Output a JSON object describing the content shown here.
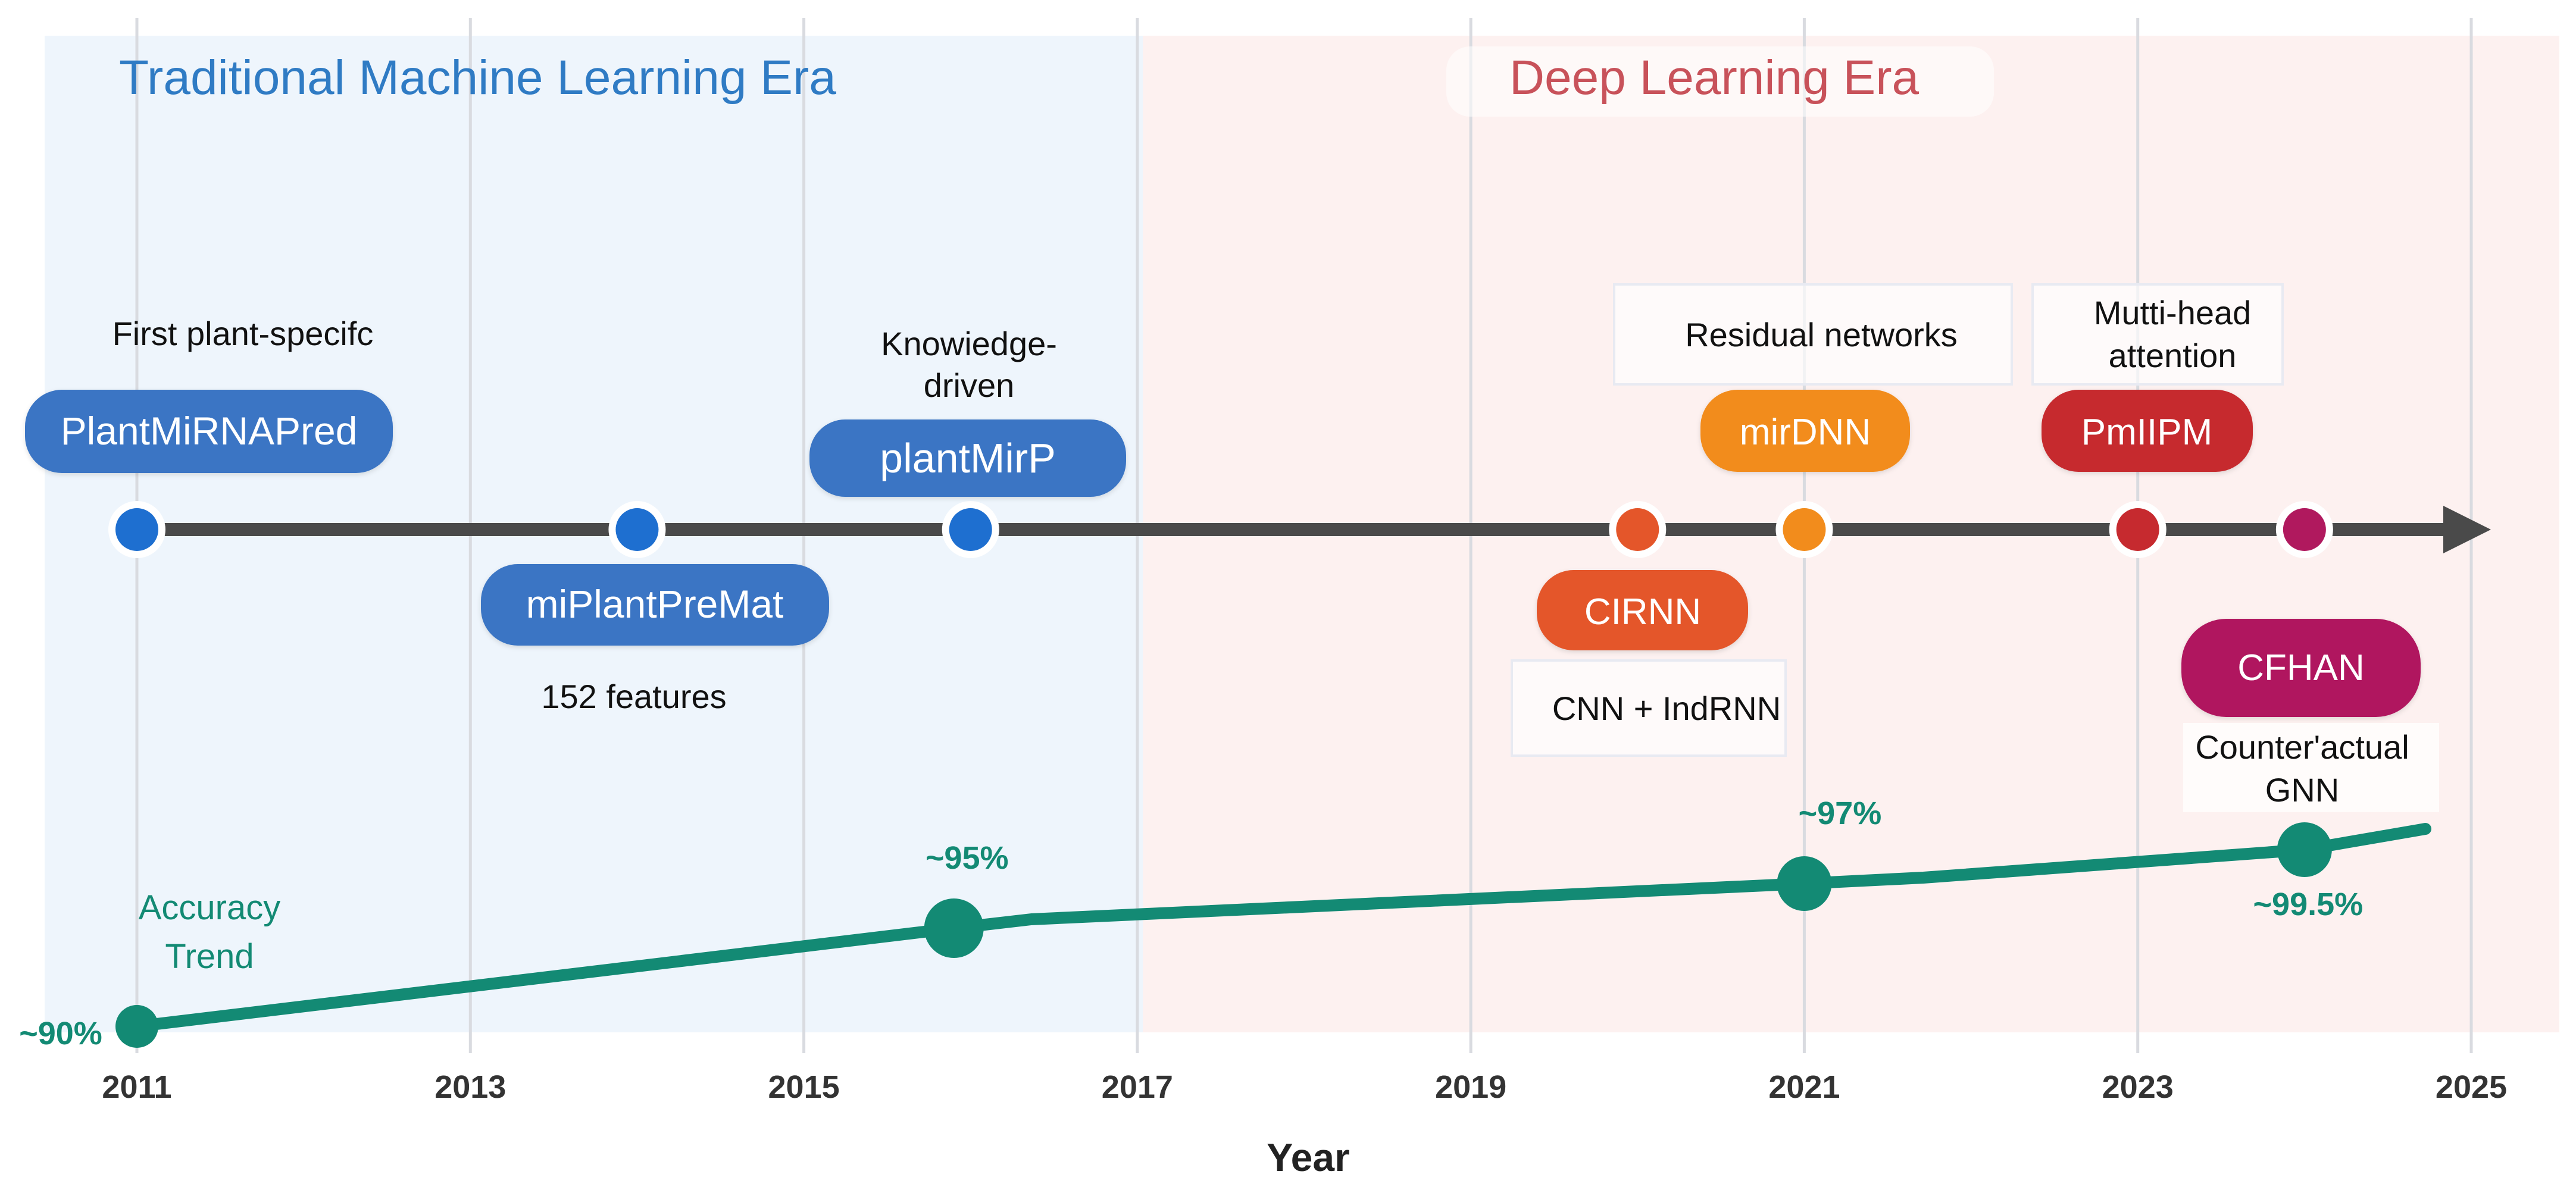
{
  "eras": {
    "traditional": {
      "label": "Traditional Machine Learning Era",
      "color": "#2f7bc4",
      "bg": "#eef5fc"
    },
    "deep": {
      "label": "Deep Learning Era",
      "color": "#c8525a",
      "bg": "#fdf1f0"
    }
  },
  "x_axis": {
    "title": "Year",
    "ticks": [
      "2011",
      "2013",
      "2015",
      "2017",
      "2019",
      "2021",
      "2023",
      "2025"
    ]
  },
  "timeline": {
    "color": "#4a4a4a",
    "methods": [
      {
        "name": "PlantMiRNAPred",
        "year": 2011,
        "color": "#3a75c4",
        "dot_color": "#1e6fd0",
        "note": "First plant-specifc"
      },
      {
        "name": "miPlantPreMat",
        "year": 2014,
        "color": "#3a75c4",
        "dot_color": "#1e6fd0",
        "note": "152 features"
      },
      {
        "name": "plantMirP",
        "year": 2016,
        "color": "#3a75c4",
        "dot_color": "#1e6fd0",
        "note": "Knowiedge-driven"
      },
      {
        "name": "CIRNN",
        "year": 2020,
        "color": "#e4562a",
        "dot_color": "#e4562a",
        "note": "CNN + IndRNN"
      },
      {
        "name": "mirDNN",
        "year": 2021,
        "color": "#f28c1c",
        "dot_color": "#f28c1c",
        "note": "Residual networks"
      },
      {
        "name": "PmIIPM",
        "year": 2023,
        "color": "#c62a2f",
        "dot_color": "#c62a2f",
        "note": "Mutti-head attention"
      },
      {
        "name": "CFHAN",
        "year": 2024,
        "color": "#b0195e",
        "dot_color": "#b0195e",
        "note": "Counter'actual GNN"
      }
    ]
  },
  "accuracy_trend": {
    "label": "Accuracy Trend",
    "color": "#138a74",
    "points": [
      {
        "year": 2011,
        "label": "~90%"
      },
      {
        "year": 2015.9,
        "label": "~95%"
      },
      {
        "year": 2021,
        "label": "~97%"
      },
      {
        "year": 2024,
        "label": "~99.5%"
      }
    ]
  }
}
